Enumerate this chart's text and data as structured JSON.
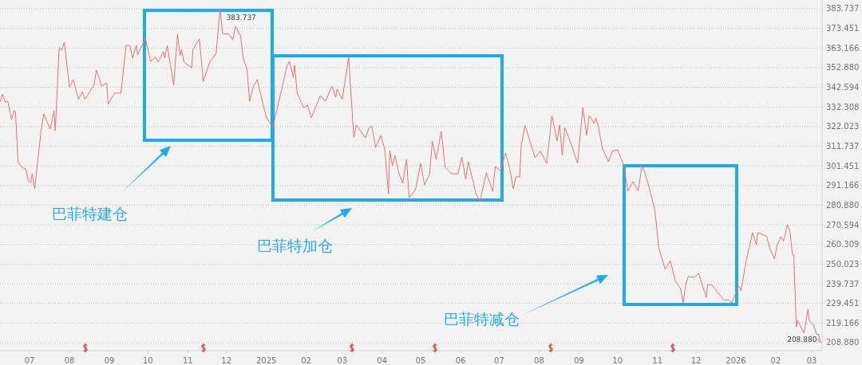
{
  "chart_data": {
    "type": "line",
    "x": [
      "2024-06-08",
      "2024-06-10",
      "2024-06-12",
      "2024-06-14",
      "2024-06-17",
      "2024-06-19",
      "2024-06-20",
      "2024-06-22",
      "2024-06-25",
      "2024-06-28",
      "2024-06-30",
      "2024-07-02",
      "2024-07-03",
      "2024-07-05",
      "2024-07-10",
      "2024-07-12",
      "2024-07-17",
      "2024-07-20",
      "2024-07-21",
      "2024-07-24",
      "2024-07-26",
      "2024-07-28",
      "2024-08-01",
      "2024-08-04",
      "2024-08-08",
      "2024-08-11",
      "2024-08-13",
      "2024-08-20",
      "2024-08-22",
      "2024-08-26",
      "2024-08-30",
      "2024-08-31",
      "2024-09-05",
      "2024-09-10",
      "2024-09-14",
      "2024-09-17",
      "2024-09-19",
      "2024-09-22",
      "2024-09-23",
      "2024-09-29",
      "2024-10-03",
      "2024-10-07",
      "2024-10-09",
      "2024-10-13",
      "2024-10-14",
      "2024-10-16",
      "2024-10-21",
      "2024-10-24",
      "2024-10-26",
      "2024-10-27",
      "2024-10-29",
      "2024-11-04",
      "2024-11-05",
      "2024-11-10",
      "2024-11-13",
      "2024-11-18",
      "2024-11-23",
      "2024-11-26",
      "2024-11-28",
      "2024-12-03",
      "2024-12-06",
      "2024-12-08",
      "2024-12-12",
      "2024-12-14",
      "2024-12-17",
      "2024-12-19",
      "2024-12-22",
      "2024-12-25",
      "2024-12-29",
      "2025-01-01",
      "2025-01-06",
      "2025-01-14",
      "2025-01-17",
      "2025-01-19",
      "2025-01-22",
      "2025-01-23",
      "2025-01-25",
      "2025-01-30",
      "2025-02-02",
      "2025-02-05",
      "2025-02-12",
      "2025-02-16",
      "2025-02-21",
      "2025-02-24",
      "2025-02-25",
      "2025-03-01",
      "2025-03-06",
      "2025-03-10",
      "2025-03-12",
      "2025-03-19",
      "2025-03-22",
      "2025-03-24",
      "2025-03-27",
      "2025-03-31",
      "2025-04-03",
      "2025-04-06",
      "2025-04-07",
      "2025-04-09",
      "2025-04-11",
      "2025-04-14",
      "2025-04-17",
      "2025-04-20",
      "2025-04-22",
      "2025-04-27",
      "2025-05-01",
      "2025-05-04",
      "2025-05-08",
      "2025-05-10",
      "2025-05-13",
      "2025-05-17",
      "2025-05-20",
      "2025-05-25",
      "2025-05-30",
      "2025-06-02",
      "2025-06-05",
      "2025-06-07",
      "2025-06-13",
      "2025-06-16",
      "2025-06-21",
      "2025-06-26",
      "2025-06-28",
      "2025-07-02",
      "2025-07-06",
      "2025-07-09",
      "2025-07-12",
      "2025-07-14",
      "2025-07-17",
      "2025-07-18",
      "2025-07-21",
      "2025-07-29",
      "2025-08-02",
      "2025-08-07",
      "2025-08-11",
      "2025-08-15",
      "2025-08-17",
      "2025-08-19",
      "2025-08-21",
      "2025-08-24",
      "2025-08-31",
      "2025-09-04",
      "2025-09-07",
      "2025-09-09",
      "2025-09-13",
      "2025-09-14",
      "2025-09-16",
      "2025-09-19",
      "2025-09-24",
      "2025-09-27",
      "2025-10-01",
      "2025-10-06",
      "2025-10-09",
      "2025-10-13",
      "2025-10-17",
      "2025-10-20",
      "2025-10-22",
      "2025-10-25",
      "2025-10-30",
      "2025-11-02",
      "2025-11-07",
      "2025-11-11",
      "2025-11-15",
      "2025-11-19",
      "2025-11-21",
      "2025-11-23",
      "2025-11-25",
      "2025-11-30",
      "2025-12-03",
      "2025-12-09",
      "2025-12-10",
      "2025-12-13",
      "2025-12-18",
      "2025-12-23",
      "2025-12-26",
      "2025-12-29",
      "2026-01-03",
      "2026-01-05",
      "2026-01-09",
      "2026-01-14",
      "2026-01-17",
      "2026-01-18",
      "2026-01-20",
      "2026-01-25",
      "2026-01-27",
      "2026-01-31",
      "2026-02-02",
      "2026-02-05",
      "2026-02-07",
      "2026-02-10",
      "2026-02-12",
      "2026-02-14",
      "2026-02-15",
      "2026-02-17",
      "2026-02-18",
      "2026-02-22",
      "2026-02-23",
      "2026-02-26",
      "2026-02-27",
      "2026-03-02",
      "2026-03-05",
      "2026-03-06",
      "2026-03-08"
    ],
    "series": [
      {
        "color": "#e8736e",
        "values": [
          334.9,
          339.0,
          334.9,
          335.3,
          325.7,
          330.3,
          329.9,
          303.6,
          300.7,
          299.8,
          293.6,
          292.7,
          297.3,
          289.4,
          320.3,
          328.6,
          320.7,
          330.3,
          319.9,
          363.3,
          362.0,
          366.2,
          342.4,
          346.6,
          336.2,
          340.3,
          336.2,
          343.7,
          351.6,
          343.2,
          344.9,
          333.7,
          339.5,
          339.5,
          364.5,
          364.5,
          357.9,
          364.5,
          359.5,
          368.3,
          356.2,
          358.3,
          355.8,
          361.2,
          357.9,
          364.5,
          343.7,
          370.4,
          359.1,
          362.4,
          355.8,
          352.8,
          362.4,
          367.9,
          345.7,
          355.8,
          360.4,
          383.737,
          370.8,
          370.4,
          367.5,
          374.6,
          369.5,
          357.9,
          352.0,
          335.3,
          343.2,
          346.6,
          334.9,
          327.0,
          321.5,
          344.5,
          353.7,
          356.2,
          347.8,
          354.1,
          339.5,
          331.9,
          333.2,
          326.6,
          338.2,
          335.3,
          343.2,
          337.4,
          341.6,
          336.2,
          358.3,
          316.5,
          322.8,
          316.1,
          321.5,
          322.4,
          311.1,
          317.4,
          310.3,
          286.9,
          309.5,
          301.5,
          306.9,
          297.8,
          292.3,
          304.9,
          284.8,
          289.0,
          302.8,
          291.5,
          297.3,
          314.5,
          304.9,
          319.5,
          300.7,
          297.3,
          297.3,
          306.1,
          294.4,
          303.6,
          286.9,
          282.7,
          297.8,
          288.2,
          301.1,
          299.0,
          308.2,
          300.7,
          289.4,
          295.7,
          295.7,
          311.1,
          322.8,
          305.7,
          309.1,
          302.8,
          327.8,
          314.5,
          322.8,
          306.9,
          321.5,
          316.5,
          302.8,
          332.0,
          317.4,
          327.8,
          323.6,
          326.6,
          322.8,
          311.1,
          303.6,
          309.1,
          309.9,
          301.5,
          288.2,
          293.2,
          288.2,
          301.5,
          298.6,
          291.5,
          278.5,
          258.9,
          247.3,
          251.8,
          241.0,
          237.2,
          229.7,
          239.3,
          243.5,
          243.1,
          245.2,
          232.6,
          239.3,
          239.3,
          235.1,
          230.9,
          231.4,
          229.7,
          238.9,
          236.0,
          251.8,
          266.5,
          260.2,
          266.5,
          266.0,
          264.4,
          258.9,
          252.7,
          259.8,
          264.4,
          261.9,
          270.6,
          267.3,
          254.8,
          254.8,
          217.2,
          220.5,
          215.1,
          213.9,
          226.4,
          220.5,
          218.5,
          213.0,
          213.4,
          208.88
        ]
      }
    ],
    "xlim": [
      "2024-06-08",
      "2026-03-09"
    ],
    "xticks": [
      {
        "value": "2024-07-01",
        "label": "07"
      },
      {
        "value": "2024-08-01",
        "label": "08"
      },
      {
        "value": "2024-09-01",
        "label": "09"
      },
      {
        "value": "2024-10-01",
        "label": "10"
      },
      {
        "value": "2024-11-01",
        "label": "11"
      },
      {
        "value": "2024-12-01",
        "label": "12"
      },
      {
        "value": "2025-01-01",
        "label": "2025"
      },
      {
        "value": "2025-02-01",
        "label": "02"
      },
      {
        "value": "2025-03-01",
        "label": "03"
      },
      {
        "value": "2025-04-01",
        "label": "04"
      },
      {
        "value": "2025-05-01",
        "label": "05"
      },
      {
        "value": "2025-06-01",
        "label": "06"
      },
      {
        "value": "2025-07-01",
        "label": "07"
      },
      {
        "value": "2025-08-01",
        "label": "08"
      },
      {
        "value": "2025-09-01",
        "label": "09"
      },
      {
        "value": "2025-10-01",
        "label": "10"
      },
      {
        "value": "2025-11-01",
        "label": "11"
      },
      {
        "value": "2025-12-01",
        "label": "12"
      },
      {
        "value": "2026-01-01",
        "label": "2026"
      },
      {
        "value": "2026-02-01",
        "label": "02"
      },
      {
        "value": "2026-03-01",
        "label": "03"
      }
    ],
    "ylim": [
      204.7,
      388.3
    ],
    "yticks": [
      383.737,
      373.451,
      363.166,
      {
        "value": 352.88,
        "label": "352.880"
      },
      342.594,
      332.308,
      322.023,
      311.737,
      301.451,
      291.166,
      {
        "value": 280.88,
        "label": "280.880"
      },
      270.594,
      260.309,
      250.023,
      239.737,
      229.451,
      219.166,
      {
        "value": 208.88,
        "label": "208.880"
      }
    ],
    "grid": "y",
    "annotations": [
      {
        "text": "383.737",
        "x": "2024-11-26",
        "y": 383.737
      },
      {
        "text": "208.880",
        "x": "2026-03-08",
        "y": 208.88
      },
      "巴菲特建仓",
      "巴菲特加仓",
      "巴菲特减仓"
    ]
  }
}
